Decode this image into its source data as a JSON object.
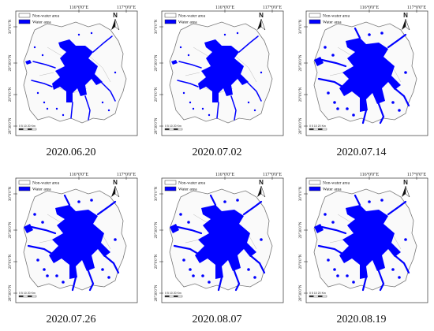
{
  "coords": {
    "lon": [
      "116°0'0\"E",
      "117°0'0\"E"
    ],
    "lat": [
      "30°0'0\"N",
      "29°30'0\"N",
      "29°0'0\"N",
      "28°30'0\"N"
    ]
  },
  "legend": {
    "nonwater_label": "Non-water area",
    "water_label": "Water area",
    "nonwater_color": "#ffffff",
    "water_color": "#0000ff"
  },
  "north_arrow": {
    "label": "N"
  },
  "scale_bar": {
    "label": "0 5 10   20 Km"
  },
  "panels": [
    {
      "date": "2020.06.20",
      "water_extent": "low"
    },
    {
      "date": "2020.07.02",
      "water_extent": "low"
    },
    {
      "date": "2020.07.14",
      "water_extent": "high"
    },
    {
      "date": "2020.07.26",
      "water_extent": "high"
    },
    {
      "date": "2020.08.07",
      "water_extent": "high"
    },
    {
      "date": "2020.08.19",
      "water_extent": "high"
    }
  ]
}
